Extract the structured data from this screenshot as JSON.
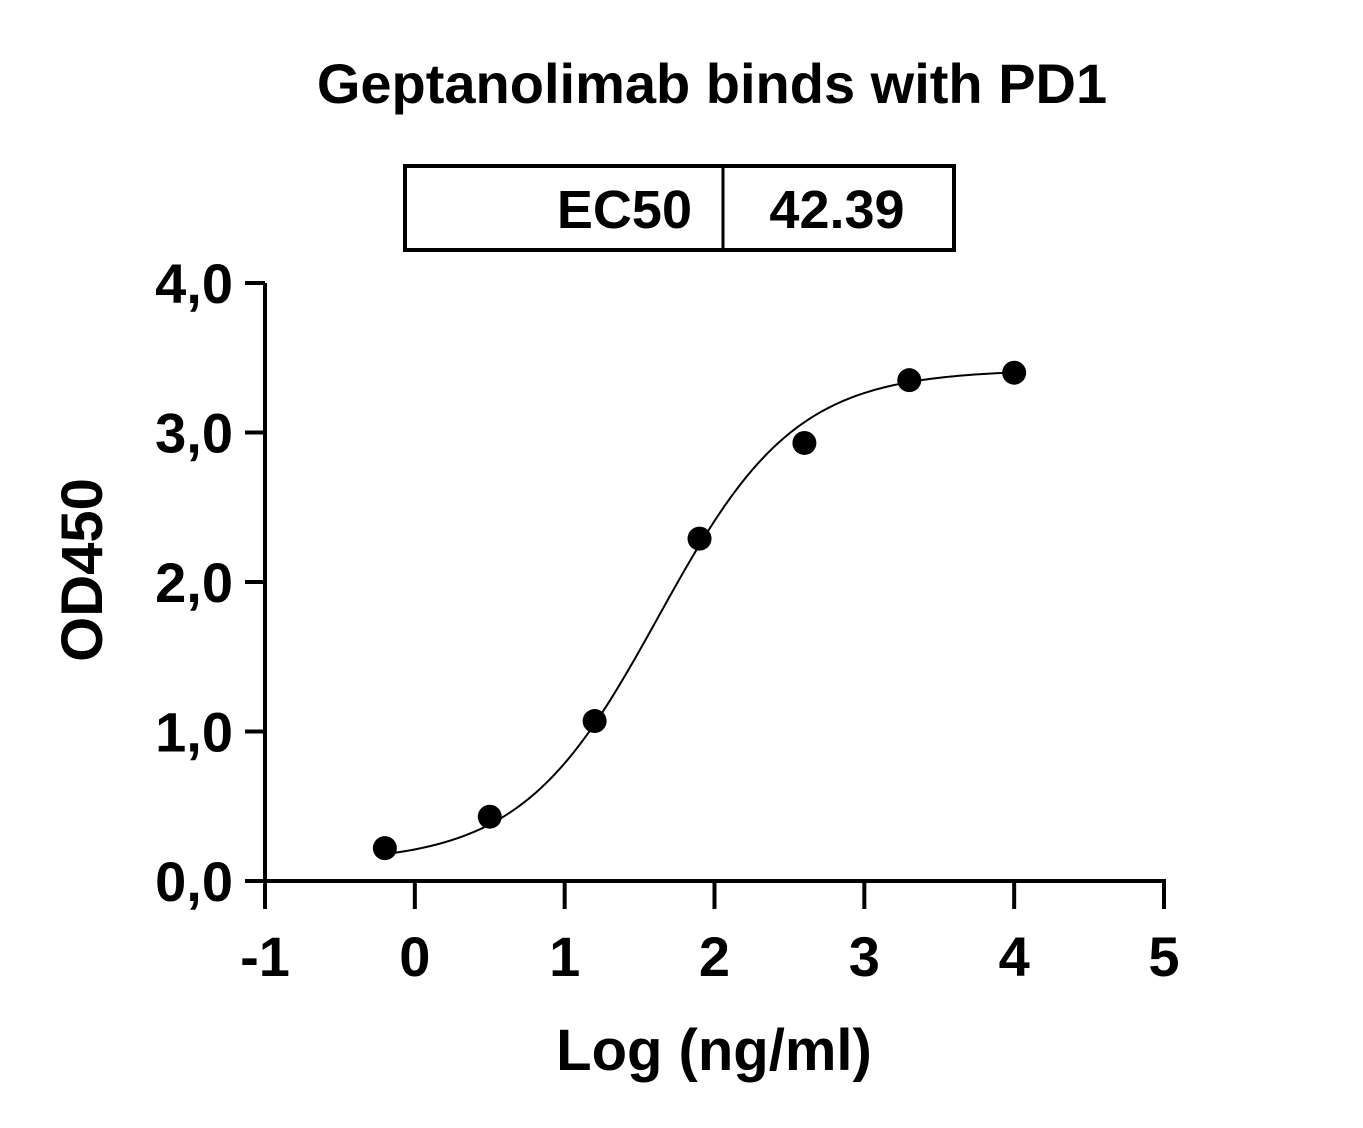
{
  "chart_data": {
    "type": "scatter",
    "title": "Geptanolimab binds with PD1",
    "xlabel": "Log (ng/ml)",
    "ylabel": "OD450",
    "xlim": [
      -1,
      5
    ],
    "ylim": [
      0,
      4
    ],
    "x_ticks": [
      "-1",
      "0",
      "1",
      "2",
      "3",
      "4",
      "5"
    ],
    "y_ticks": [
      "0,0",
      "1,0",
      "2,0",
      "3,0",
      "4,0"
    ],
    "points": [
      {
        "x": -0.2,
        "y": 0.22
      },
      {
        "x": 0.5,
        "y": 0.43
      },
      {
        "x": 1.2,
        "y": 1.07
      },
      {
        "x": 1.9,
        "y": 2.29
      },
      {
        "x": 2.6,
        "y": 2.93
      },
      {
        "x": 3.3,
        "y": 3.35
      },
      {
        "x": 4.0,
        "y": 3.4
      }
    ],
    "fit": {
      "model": "4PL",
      "bottom": 0.12,
      "top": 3.42,
      "logEC50": 1.627,
      "hill": 0.95
    },
    "ec50_table": {
      "label": "EC50",
      "value": "42.39"
    },
    "grid": false,
    "legend": "none"
  }
}
